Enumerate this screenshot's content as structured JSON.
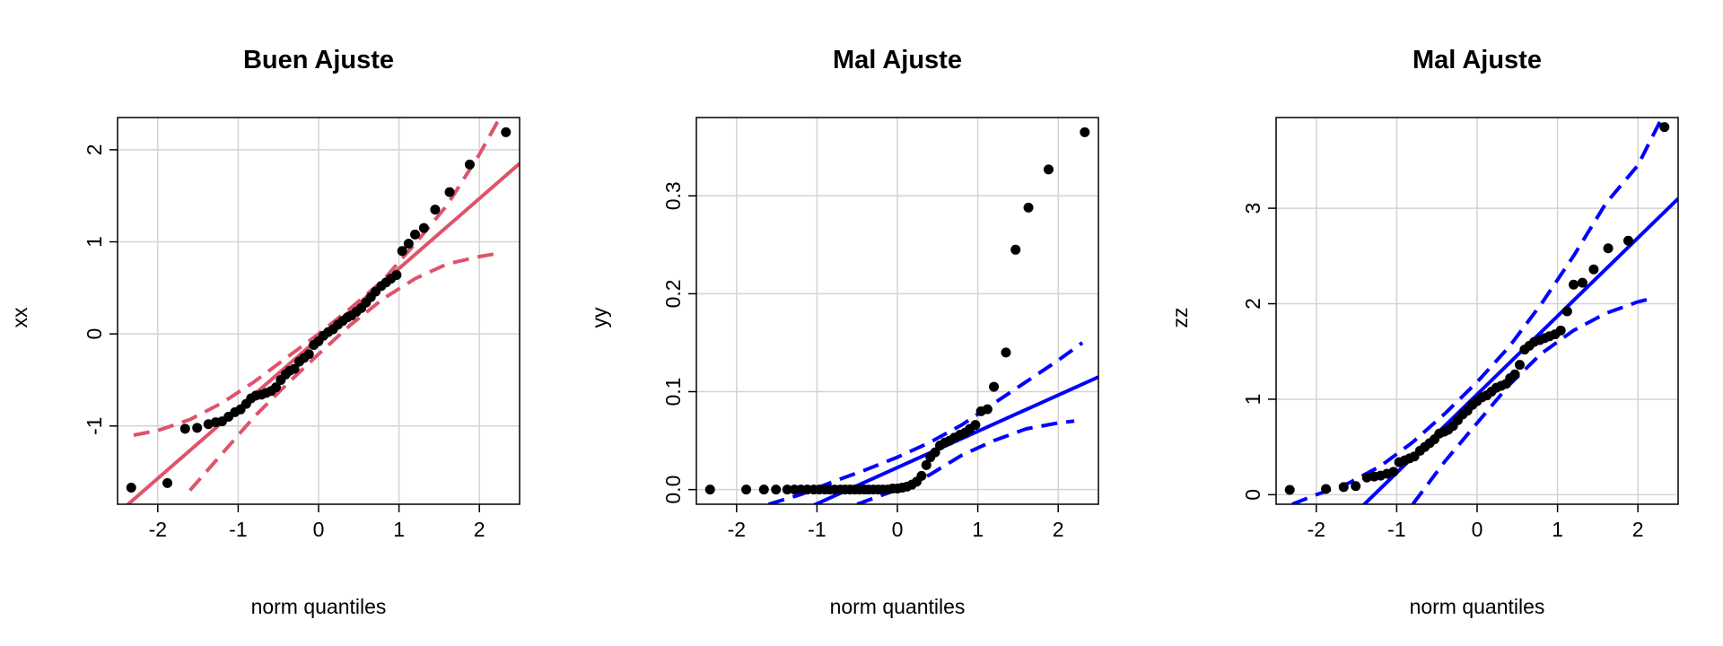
{
  "chart_data": [
    {
      "type": "scatter",
      "title": "Buen Ajuste",
      "xlabel": "norm quantiles",
      "ylabel": "xx",
      "xlim": [
        -2.5,
        2.5
      ],
      "ylim": [
        -1.85,
        2.35
      ],
      "xticks": [
        -2,
        -1,
        0,
        1,
        2
      ],
      "xtick_labels": [
        "-2",
        "-1",
        "0",
        "1",
        "2"
      ],
      "yticks": [
        -1,
        0,
        1,
        2
      ],
      "ytick_labels": [
        "-1",
        "0",
        "1",
        "2"
      ],
      "grid": true,
      "line_color": "#df536b",
      "point_color": "#000000",
      "ref_line": [
        [
          -2.5,
          -1.95
        ],
        [
          2.5,
          1.85
        ]
      ],
      "band_lower": [
        [
          -1.6,
          -1.7
        ],
        [
          -1.2,
          -1.3
        ],
        [
          -0.8,
          -0.9
        ],
        [
          -0.4,
          -0.55
        ],
        [
          0,
          -0.22
        ],
        [
          0.4,
          0.1
        ],
        [
          0.8,
          0.38
        ],
        [
          1.2,
          0.6
        ],
        [
          1.6,
          0.76
        ],
        [
          2.0,
          0.84
        ],
        [
          2.2,
          0.87
        ]
      ],
      "band_upper": [
        [
          -2.3,
          -1.1
        ],
        [
          -2.0,
          -1.05
        ],
        [
          -1.6,
          -0.93
        ],
        [
          -1.2,
          -0.75
        ],
        [
          -0.8,
          -0.52
        ],
        [
          -0.4,
          -0.26
        ],
        [
          0,
          0.0
        ],
        [
          0.4,
          0.28
        ],
        [
          0.8,
          0.58
        ],
        [
          1.2,
          0.98
        ],
        [
          1.6,
          1.4
        ],
        [
          2.0,
          1.95
        ],
        [
          2.3,
          2.42
        ]
      ],
      "points": [
        [
          -2.33,
          -1.67
        ],
        [
          -1.88,
          -1.62
        ],
        [
          -1.66,
          -1.03
        ],
        [
          -1.51,
          -1.02
        ],
        [
          -1.37,
          -0.98
        ],
        [
          -1.28,
          -0.96
        ],
        [
          -1.2,
          -0.95
        ],
        [
          -1.12,
          -0.9
        ],
        [
          -1.04,
          -0.85
        ],
        [
          -0.97,
          -0.82
        ],
        [
          -0.9,
          -0.76
        ],
        [
          -0.84,
          -0.7
        ],
        [
          -0.78,
          -0.67
        ],
        [
          -0.71,
          -0.66
        ],
        [
          -0.65,
          -0.64
        ],
        [
          -0.59,
          -0.62
        ],
        [
          -0.53,
          -0.58
        ],
        [
          -0.47,
          -0.5
        ],
        [
          -0.41,
          -0.44
        ],
        [
          -0.36,
          -0.4
        ],
        [
          -0.3,
          -0.38
        ],
        [
          -0.24,
          -0.3
        ],
        [
          -0.18,
          -0.26
        ],
        [
          -0.12,
          -0.22
        ],
        [
          -0.06,
          -0.12
        ],
        [
          0.0,
          -0.08
        ],
        [
          0.06,
          -0.02
        ],
        [
          0.12,
          0.02
        ],
        [
          0.18,
          0.05
        ],
        [
          0.24,
          0.1
        ],
        [
          0.3,
          0.14
        ],
        [
          0.36,
          0.18
        ],
        [
          0.41,
          0.2
        ],
        [
          0.47,
          0.24
        ],
        [
          0.53,
          0.28
        ],
        [
          0.59,
          0.34
        ],
        [
          0.65,
          0.4
        ],
        [
          0.71,
          0.46
        ],
        [
          0.78,
          0.52
        ],
        [
          0.84,
          0.56
        ],
        [
          0.9,
          0.6
        ],
        [
          0.97,
          0.64
        ],
        [
          1.04,
          0.9
        ],
        [
          1.12,
          0.98
        ],
        [
          1.2,
          1.08
        ],
        [
          1.31,
          1.15
        ],
        [
          1.45,
          1.35
        ],
        [
          1.63,
          1.54
        ],
        [
          1.88,
          1.84
        ],
        [
          2.33,
          2.19
        ]
      ]
    },
    {
      "type": "scatter",
      "title": "Mal Ajuste",
      "xlabel": "norm quantiles",
      "ylabel": "yy",
      "xlim": [
        -2.5,
        2.5
      ],
      "ylim": [
        -0.015,
        0.38
      ],
      "xticks": [
        -2,
        -1,
        0,
        1,
        2
      ],
      "xtick_labels": [
        "-2",
        "-1",
        "0",
        "1",
        "2"
      ],
      "yticks": [
        0.0,
        0.1,
        0.2,
        0.3
      ],
      "ytick_labels": [
        "0.0",
        "0.1",
        "0.2",
        "0.3"
      ],
      "grid": true,
      "line_color": "#0000ff",
      "point_color": "#000000",
      "ref_line": [
        [
          -2.5,
          -0.07
        ],
        [
          2.5,
          0.115
        ]
      ],
      "band_lower": [
        [
          -0.5,
          -0.015
        ],
        [
          0,
          0.0
        ],
        [
          0.4,
          0.015
        ],
        [
          0.8,
          0.035
        ],
        [
          1.2,
          0.05
        ],
        [
          1.6,
          0.062
        ],
        [
          2.0,
          0.068
        ],
        [
          2.2,
          0.07
        ]
      ],
      "band_upper": [
        [
          -1.6,
          -0.015
        ],
        [
          -1.2,
          -0.005
        ],
        [
          -0.8,
          0.008
        ],
        [
          -0.4,
          0.02
        ],
        [
          0,
          0.033
        ],
        [
          0.4,
          0.048
        ],
        [
          0.8,
          0.066
        ],
        [
          1.2,
          0.088
        ],
        [
          1.6,
          0.11
        ],
        [
          2.0,
          0.132
        ],
        [
          2.3,
          0.15
        ]
      ],
      "points": [
        [
          -2.33,
          0.0
        ],
        [
          -1.88,
          0.0
        ],
        [
          -1.66,
          0.0
        ],
        [
          -1.51,
          0.0
        ],
        [
          -1.37,
          0.0
        ],
        [
          -1.28,
          0.0
        ],
        [
          -1.2,
          0.0
        ],
        [
          -1.12,
          0.0
        ],
        [
          -1.04,
          0.0
        ],
        [
          -0.97,
          0.0
        ],
        [
          -0.9,
          0.0
        ],
        [
          -0.84,
          0.0
        ],
        [
          -0.78,
          0.0
        ],
        [
          -0.71,
          0.0
        ],
        [
          -0.65,
          0.0
        ],
        [
          -0.59,
          0.0
        ],
        [
          -0.53,
          0.0
        ],
        [
          -0.47,
          0.0
        ],
        [
          -0.41,
          0.0
        ],
        [
          -0.36,
          0.0
        ],
        [
          -0.3,
          0.0
        ],
        [
          -0.24,
          0.0
        ],
        [
          -0.18,
          0.0
        ],
        [
          -0.12,
          0.0
        ],
        [
          -0.06,
          0.001
        ],
        [
          0.0,
          0.001
        ],
        [
          0.06,
          0.002
        ],
        [
          0.12,
          0.003
        ],
        [
          0.18,
          0.005
        ],
        [
          0.24,
          0.008
        ],
        [
          0.3,
          0.014
        ],
        [
          0.36,
          0.025
        ],
        [
          0.41,
          0.033
        ],
        [
          0.47,
          0.038
        ],
        [
          0.53,
          0.045
        ],
        [
          0.59,
          0.048
        ],
        [
          0.65,
          0.05
        ],
        [
          0.71,
          0.053
        ],
        [
          0.78,
          0.056
        ],
        [
          0.84,
          0.058
        ],
        [
          0.9,
          0.062
        ],
        [
          0.97,
          0.066
        ],
        [
          1.04,
          0.08
        ],
        [
          1.12,
          0.082
        ],
        [
          1.2,
          0.105
        ],
        [
          1.35,
          0.14
        ],
        [
          1.47,
          0.245
        ],
        [
          1.63,
          0.288
        ],
        [
          1.88,
          0.327
        ],
        [
          2.33,
          0.365
        ]
      ]
    },
    {
      "type": "scatter",
      "title": "Mal Ajuste",
      "xlabel": "norm quantiles",
      "ylabel": "zz",
      "xlim": [
        -2.5,
        2.5
      ],
      "ylim": [
        -0.1,
        3.95
      ],
      "xticks": [
        -2,
        -1,
        0,
        1,
        2
      ],
      "xtick_labels": [
        "-2",
        "-1",
        "0",
        "1",
        "2"
      ],
      "yticks": [
        0,
        1,
        2,
        3
      ],
      "ytick_labels": [
        "0",
        "1",
        "2",
        "3"
      ],
      "grid": true,
      "line_color": "#0000ff",
      "point_color": "#000000",
      "ref_line": [
        [
          -2.5,
          -1.0
        ],
        [
          2.5,
          3.1
        ]
      ],
      "band_lower": [
        [
          -0.8,
          -0.1
        ],
        [
          -0.4,
          0.35
        ],
        [
          0,
          0.75
        ],
        [
          0.4,
          1.15
        ],
        [
          0.8,
          1.48
        ],
        [
          1.2,
          1.72
        ],
        [
          1.6,
          1.9
        ],
        [
          2.0,
          2.02
        ],
        [
          2.2,
          2.06
        ]
      ],
      "band_upper": [
        [
          -2.3,
          -0.1
        ],
        [
          -2.0,
          0.0
        ],
        [
          -1.6,
          0.12
        ],
        [
          -1.2,
          0.3
        ],
        [
          -0.8,
          0.55
        ],
        [
          -0.4,
          0.85
        ],
        [
          0,
          1.18
        ],
        [
          0.4,
          1.55
        ],
        [
          0.8,
          2.0
        ],
        [
          1.2,
          2.5
        ],
        [
          1.6,
          3.05
        ],
        [
          2.0,
          3.45
        ],
        [
          2.3,
          3.95
        ]
      ],
      "points": [
        [
          -2.33,
          0.05
        ],
        [
          -1.88,
          0.06
        ],
        [
          -1.66,
          0.08
        ],
        [
          -1.51,
          0.09
        ],
        [
          -1.37,
          0.18
        ],
        [
          -1.28,
          0.19
        ],
        [
          -1.2,
          0.2
        ],
        [
          -1.12,
          0.22
        ],
        [
          -1.04,
          0.24
        ],
        [
          -0.97,
          0.34
        ],
        [
          -0.9,
          0.36
        ],
        [
          -0.84,
          0.38
        ],
        [
          -0.78,
          0.4
        ],
        [
          -0.71,
          0.46
        ],
        [
          -0.65,
          0.5
        ],
        [
          -0.59,
          0.54
        ],
        [
          -0.53,
          0.58
        ],
        [
          -0.47,
          0.64
        ],
        [
          -0.41,
          0.66
        ],
        [
          -0.36,
          0.68
        ],
        [
          -0.3,
          0.72
        ],
        [
          -0.24,
          0.78
        ],
        [
          -0.18,
          0.84
        ],
        [
          -0.12,
          0.88
        ],
        [
          -0.06,
          0.94
        ],
        [
          0.0,
          0.98
        ],
        [
          0.06,
          1.02
        ],
        [
          0.12,
          1.04
        ],
        [
          0.18,
          1.08
        ],
        [
          0.24,
          1.12
        ],
        [
          0.3,
          1.14
        ],
        [
          0.36,
          1.16
        ],
        [
          0.41,
          1.22
        ],
        [
          0.47,
          1.26
        ],
        [
          0.53,
          1.36
        ],
        [
          0.59,
          1.52
        ],
        [
          0.65,
          1.56
        ],
        [
          0.71,
          1.6
        ],
        [
          0.78,
          1.62
        ],
        [
          0.84,
          1.64
        ],
        [
          0.9,
          1.66
        ],
        [
          0.97,
          1.68
        ],
        [
          1.04,
          1.72
        ],
        [
          1.12,
          1.92
        ],
        [
          1.2,
          2.2
        ],
        [
          1.31,
          2.22
        ],
        [
          1.45,
          2.36
        ],
        [
          1.63,
          2.58
        ],
        [
          1.88,
          2.66
        ],
        [
          2.33,
          3.85
        ]
      ]
    }
  ]
}
